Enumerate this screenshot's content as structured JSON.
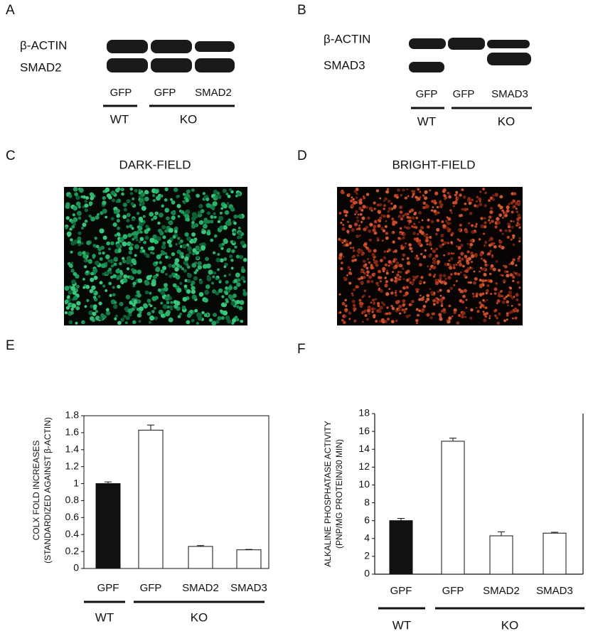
{
  "panels": {
    "a": "A",
    "b": "B",
    "c": "C",
    "d": "D",
    "e": "E",
    "f": "F"
  },
  "blot_a": {
    "rows": [
      "β-ACTIN",
      "SMAD2"
    ],
    "lanes": [
      "GFP",
      "GFP",
      "SMAD2"
    ],
    "groups": [
      "WT",
      "KO"
    ]
  },
  "blot_b": {
    "rows": [
      "β-ACTIN",
      "SMAD3"
    ],
    "lanes": [
      "GFP",
      "GFP",
      "SMAD3"
    ],
    "groups": [
      "WT",
      "KO"
    ]
  },
  "images": [
    {
      "title": "DARK-FIELD"
    },
    {
      "title": "BRIGHT-FIELD"
    }
  ],
  "chart_data": [
    {
      "type": "bar",
      "y_label": [
        "COLX FOLD INCREASES",
        "(STANDARDIZED AGAINST β-ACTIN)"
      ],
      "categories": [
        "GPF",
        "GFP",
        "SMAD2",
        "SMAD3"
      ],
      "groups": [
        "WT",
        "KO"
      ],
      "values": [
        1.0,
        1.63,
        0.26,
        0.22
      ],
      "errors": [
        0.02,
        0.06,
        0.01,
        0.005
      ],
      "colors": [
        "#111111",
        "#ffffff",
        "#ffffff",
        "#ffffff"
      ],
      "ylim": [
        0,
        1.8
      ],
      "yticks": [
        0,
        0.2,
        0.4,
        0.6,
        0.8,
        1,
        1.2,
        1.4,
        1.6,
        1.8
      ]
    },
    {
      "type": "bar",
      "y_label": [
        "ALKALINE PHOSPHATASE ACTIVITY",
        "(PNP/MG PROTEIN/30 MIN)"
      ],
      "categories": [
        "GPF",
        "GFP",
        "SMAD2",
        "SMAD3"
      ],
      "groups": [
        "WT",
        "KO"
      ],
      "values": [
        6.0,
        14.9,
        4.3,
        4.6
      ],
      "errors": [
        0.25,
        0.35,
        0.45,
        0.1
      ],
      "colors": [
        "#111111",
        "#ffffff",
        "#ffffff",
        "#ffffff"
      ],
      "ylim": [
        0,
        18
      ],
      "yticks": [
        0,
        2,
        4,
        6,
        8,
        10,
        12,
        14,
        16,
        18
      ]
    }
  ]
}
